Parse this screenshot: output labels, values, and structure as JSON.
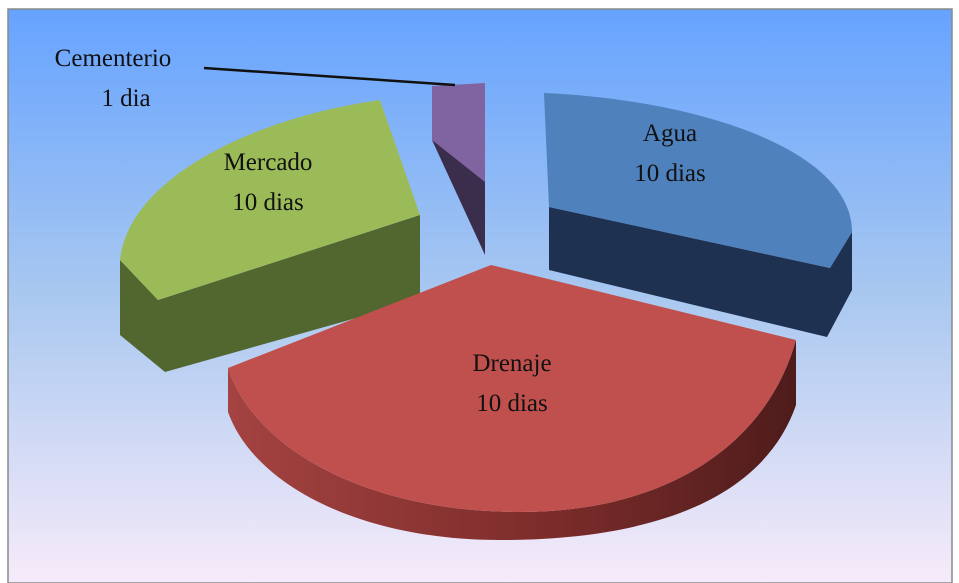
{
  "chart_data": {
    "type": "pie",
    "variant": "3d-exploded",
    "title": "",
    "background_gradient": [
      "#66a3ff",
      "#a9c8f0",
      "#f7ebfa"
    ],
    "slices": [
      {
        "key": "agua",
        "label": "Agua",
        "value": 10,
        "value_text": "10 dias",
        "color": "#4f81bd",
        "side_color": "#1f3150"
      },
      {
        "key": "drenaje",
        "label": "Drenaje",
        "value": 10,
        "value_text": "10 dias",
        "color": "#c0504d",
        "side_color": "#5e2322"
      },
      {
        "key": "mercado",
        "label": "Mercado",
        "value": 10,
        "value_text": "10 dias",
        "color": "#9bbb59",
        "side_color": "#526630"
      },
      {
        "key": "cementerio",
        "label": "Cementerio",
        "value": 1,
        "value_text": "1 dia",
        "color": "#8064a2",
        "side_color": "#3b2d4c"
      }
    ]
  }
}
